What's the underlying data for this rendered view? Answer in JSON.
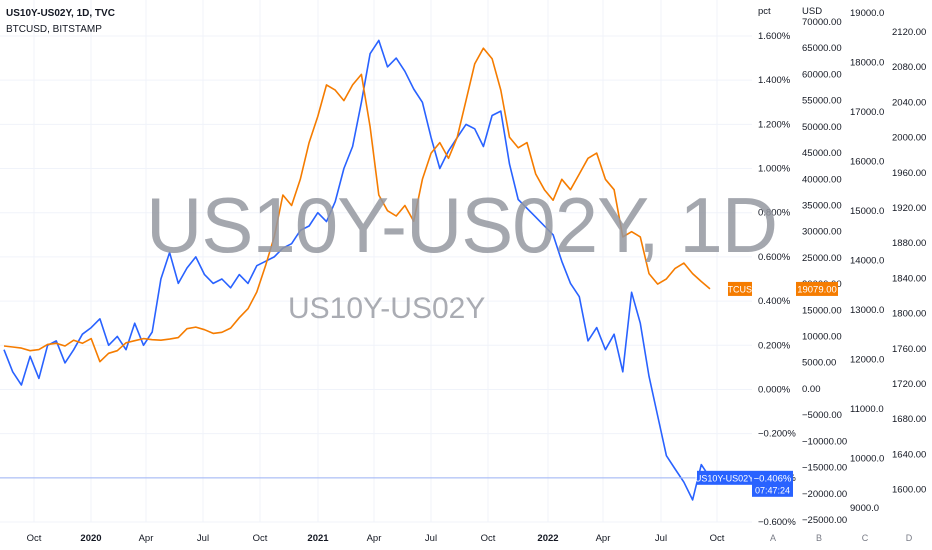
{
  "legend": {
    "line1": "US10Y-US02Y, 1D, TVC",
    "line2": "BTCUSD, BITSTAMP"
  },
  "watermark": {
    "big": "US10Y-US02Y, 1D",
    "small": "US10Y-US02Y"
  },
  "colors": {
    "spread": "#2962ff",
    "btc": "#f57c00",
    "grid": "#f0f3fa",
    "text": "#131722"
  },
  "scale_buttons": [
    "A",
    "B",
    "C",
    "D"
  ],
  "chart_data": {
    "type": "line",
    "x_ticks": [
      {
        "label": "Oct",
        "bold": false
      },
      {
        "label": "2020",
        "bold": true
      },
      {
        "label": "Apr",
        "bold": false
      },
      {
        "label": "Jul",
        "bold": false
      },
      {
        "label": "Oct",
        "bold": false
      },
      {
        "label": "2021",
        "bold": true
      },
      {
        "label": "Apr",
        "bold": false
      },
      {
        "label": "Jul",
        "bold": false
      },
      {
        "label": "Oct",
        "bold": false
      },
      {
        "label": "2022",
        "bold": true
      },
      {
        "label": "Apr",
        "bold": false
      },
      {
        "label": "Jul",
        "bold": false
      },
      {
        "label": "Oct",
        "bold": false
      }
    ],
    "axes": {
      "pct": {
        "header": "pct",
        "ticks": [
          "1.600%",
          "1.400%",
          "1.200%",
          "1.000%",
          "0.800%",
          "0.600%",
          "0.400%",
          "0.200%",
          "0.000%",
          "−0.200%",
          "−0.400%",
          "−0.600%"
        ],
        "range": [
          -0.6,
          1.6
        ]
      },
      "usd": {
        "header": "USD",
        "ticks": [
          "70000.00",
          "65000.00",
          "60000.00",
          "55000.00",
          "50000.00",
          "45000.00",
          "40000.00",
          "35000.00",
          "30000.00",
          "25000.00",
          "20000.00",
          "15000.00",
          "10000.00",
          "5000.00",
          "0.00",
          "−5000.00",
          "−10000.00",
          "−15000.00",
          "−20000.00",
          "−25000.00"
        ],
        "range": [
          -25000,
          70000
        ]
      },
      "axis3": {
        "ticks": [
          "19000.0",
          "18000.0",
          "17000.0",
          "16000.0",
          "15000.0",
          "14000.0",
          "13000.0",
          "12000.0",
          "11000.0",
          "10000.0",
          "9000.0"
        ]
      },
      "axis4": {
        "ticks": [
          "2120.00",
          "2080.00",
          "2040.00",
          "2000.00",
          "1960.00",
          "1920.00",
          "1880.00",
          "1840.00",
          "1800.00",
          "1760.00",
          "1720.00",
          "1680.00",
          "1640.00",
          "1600.00"
        ]
      }
    },
    "series": [
      {
        "name": "US10Y-US02Y",
        "axis": "pct",
        "last_label": "US10Y-US02Y",
        "last_value": "−0.406%",
        "countdown": "07:47:24",
        "values": [
          0.18,
          0.08,
          0.02,
          0.15,
          0.05,
          0.2,
          0.22,
          0.12,
          0.18,
          0.25,
          0.28,
          0.32,
          0.2,
          0.24,
          0.18,
          0.3,
          0.2,
          0.26,
          0.5,
          0.62,
          0.48,
          0.55,
          0.6,
          0.52,
          0.48,
          0.5,
          0.46,
          0.52,
          0.48,
          0.56,
          0.58,
          0.6,
          0.64,
          0.66,
          0.72,
          0.74,
          0.8,
          0.76,
          0.85,
          1.0,
          1.1,
          1.3,
          1.52,
          1.58,
          1.46,
          1.5,
          1.44,
          1.36,
          1.3,
          1.14,
          1.0,
          1.08,
          1.14,
          1.2,
          1.18,
          1.1,
          1.24,
          1.26,
          1.02,
          0.86,
          0.82,
          0.78,
          0.74,
          0.7,
          0.58,
          0.48,
          0.42,
          0.22,
          0.28,
          0.18,
          0.25,
          0.08,
          0.44,
          0.3,
          0.06,
          -0.12,
          -0.3,
          -0.36,
          -0.42,
          -0.5,
          -0.34,
          -0.4
        ]
      },
      {
        "name": "BTCUSD",
        "axis": "usd",
        "last_label": "BTCUSD",
        "last_value": "19079.00",
        "values": [
          8200,
          8000,
          7800,
          7300,
          7500,
          8500,
          8700,
          8200,
          9300,
          8700,
          9600,
          5200,
          6800,
          7300,
          8800,
          9200,
          9600,
          9400,
          9300,
          9500,
          9800,
          11500,
          11800,
          11300,
          10600,
          10800,
          11600,
          13600,
          15300,
          18500,
          23500,
          29000,
          37000,
          35000,
          40000,
          47000,
          52000,
          58000,
          57000,
          55000,
          58000,
          60000,
          50000,
          37000,
          34000,
          33000,
          35000,
          32000,
          40000,
          45000,
          47000,
          44000,
          48000,
          55000,
          62000,
          65000,
          63000,
          57000,
          48000,
          46000,
          47000,
          41000,
          38000,
          36000,
          40000,
          38000,
          41000,
          44000,
          45000,
          40000,
          38000,
          29000,
          30000,
          29000,
          22000,
          20000,
          21000,
          23000,
          24000,
          22000,
          20500,
          19079
        ]
      }
    ]
  }
}
